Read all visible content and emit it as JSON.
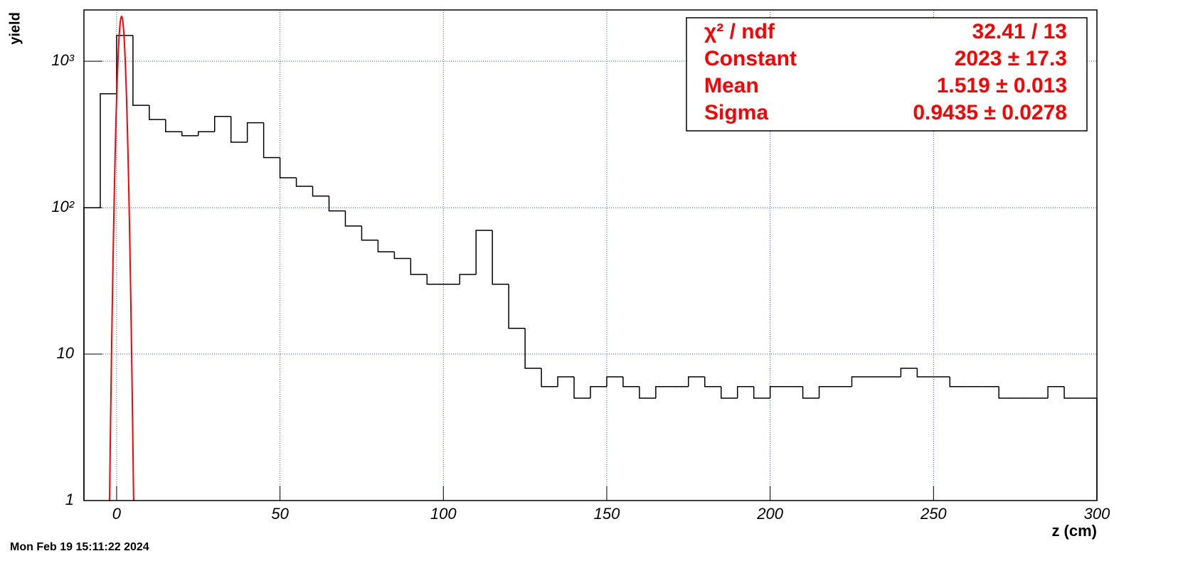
{
  "chart_data": {
    "type": "histogram",
    "y_label": "yield",
    "x_label": "z (cm)",
    "timestamp": "Mon Feb 19 15:11:22 2024",
    "bins": [
      -10,
      -5,
      0,
      5,
      10,
      15,
      20,
      25,
      30,
      35,
      40,
      45,
      50,
      55,
      60,
      65,
      70,
      75,
      80,
      85,
      90,
      95,
      100,
      105,
      110,
      115,
      120,
      125,
      130,
      135,
      140,
      145,
      150,
      155,
      160,
      165,
      170,
      175,
      180,
      185,
      190,
      195,
      200,
      205,
      210,
      215,
      220,
      225,
      230,
      235,
      240,
      245,
      250,
      255,
      260,
      265,
      270,
      275,
      280,
      285,
      290,
      295,
      300
    ],
    "values": [
      100,
      600,
      1500,
      500,
      400,
      330,
      310,
      330,
      420,
      280,
      380,
      220,
      160,
      140,
      120,
      95,
      75,
      60,
      50,
      45,
      35,
      30,
      30,
      35,
      70,
      30,
      15,
      8,
      6,
      7,
      5,
      6,
      7,
      6,
      5,
      6,
      6,
      7,
      6,
      5,
      6,
      5,
      6,
      6,
      5,
      6,
      6,
      7,
      7,
      7,
      8,
      7,
      7,
      6,
      6,
      6,
      5,
      5,
      5,
      6,
      5,
      5
    ],
    "color": "#000000",
    "fit": {
      "constant": 2023,
      "mean": 1.519,
      "sigma": 0.9435,
      "color": "#ff0000"
    },
    "stats": [
      {
        "name": "χ² / ndf",
        "value": "32.41 / 13"
      },
      {
        "name": "Constant",
        "value": "2023 ± 17.3"
      },
      {
        "name": "Mean",
        "value": "1.519 ± 0.013"
      },
      {
        "name": "Sigma",
        "value": "0.9435 ± 0.0278"
      }
    ],
    "xlim": [
      -10,
      300
    ],
    "xticks": [
      0,
      50,
      100,
      150,
      200,
      250,
      300
    ],
    "ylim": [
      1,
      2240
    ],
    "log_y": true,
    "yticks": [
      1,
      10,
      {
        "value": 100,
        "label": "10²"
      },
      {
        "value": 1000,
        "label": "10³"
      }
    ],
    "grid": true
  }
}
